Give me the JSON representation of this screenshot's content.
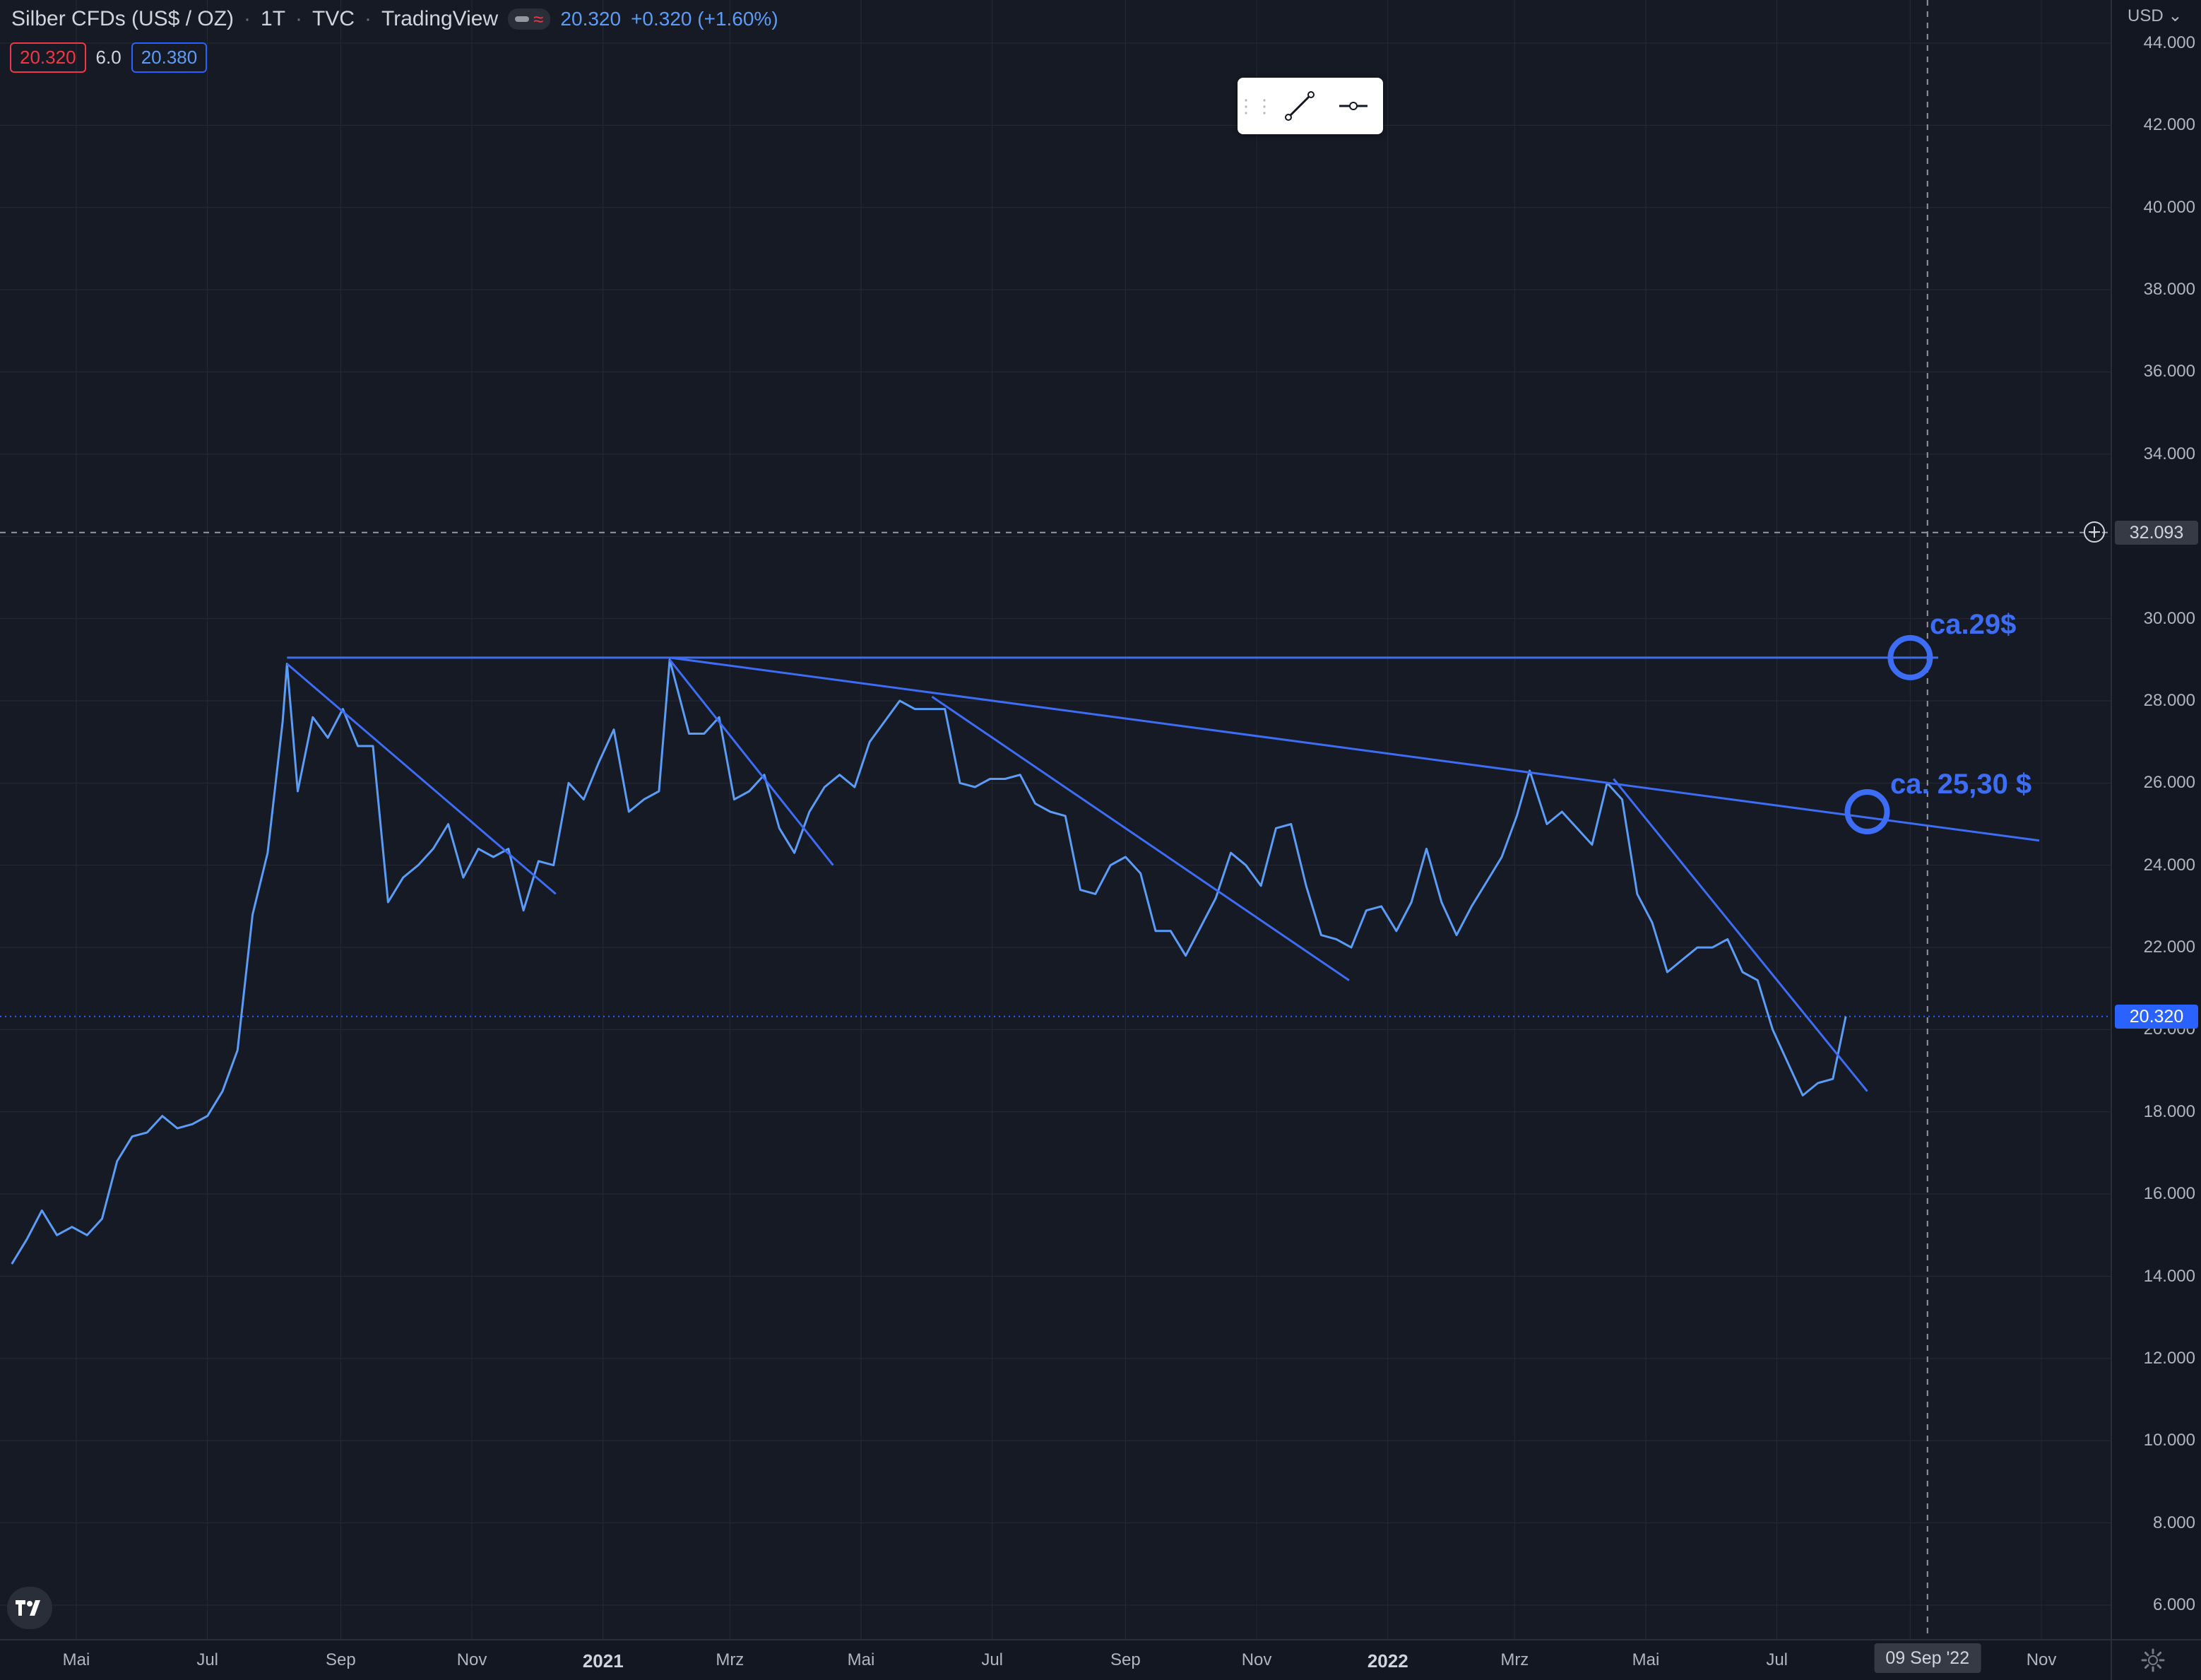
{
  "header": {
    "symbol_title": "Silber CFDs (US$ / OZ)",
    "interval": "1T",
    "exchange": "TVC",
    "source": "TradingView",
    "last_price": "20.320",
    "change": "+0.320 (+1.60%)"
  },
  "ohlc": {
    "left_value": "20.320",
    "middle_value": "6.0",
    "right_value": "20.380"
  },
  "price_scale": {
    "currency": "USD",
    "labels": [
      "44.000",
      "42.000",
      "40.000",
      "38.000",
      "36.000",
      "34.000",
      "30.000",
      "28.000",
      "26.000",
      "24.000",
      "22.000",
      "20.000",
      "18.000",
      "16.000",
      "14.000",
      "12.000",
      "10.000",
      "8.000",
      "6.000"
    ],
    "crosshair_price": "32.093",
    "current_price_tag": "20.320"
  },
  "time_scale": {
    "labels": [
      {
        "text": "Mai",
        "bold": false
      },
      {
        "text": "Jul",
        "bold": false
      },
      {
        "text": "Sep",
        "bold": false
      },
      {
        "text": "Nov",
        "bold": false
      },
      {
        "text": "2021",
        "bold": true
      },
      {
        "text": "Mrz",
        "bold": false
      },
      {
        "text": "Mai",
        "bold": false
      },
      {
        "text": "Jul",
        "bold": false
      },
      {
        "text": "Sep",
        "bold": false
      },
      {
        "text": "Nov",
        "bold": false
      },
      {
        "text": "2022",
        "bold": true
      },
      {
        "text": "Mrz",
        "bold": false
      },
      {
        "text": "Mai",
        "bold": false
      },
      {
        "text": "Jul",
        "bold": false
      },
      {
        "text": "Nov",
        "bold": false
      }
    ],
    "crosshair_date": "09 Sep '22"
  },
  "annotations": {
    "target_1": "ca.29$",
    "target_2": "ca. 25,30 $"
  },
  "colors": {
    "background": "#161a25",
    "line": "#5b9cf6",
    "trendline": "#3d6df5",
    "up": "#5b9cf6",
    "down": "#f23645"
  },
  "chart_data": {
    "type": "line",
    "title": "Silber CFDs (US$ / OZ)",
    "ylim": [
      5,
      45
    ],
    "series": [
      {
        "name": "Silber CFDs (US$ / OZ)",
        "points": [
          [
            "2020-04-01",
            14.3
          ],
          [
            "2020-04-08",
            14.9
          ],
          [
            "2020-04-15",
            15.6
          ],
          [
            "2020-04-22",
            15.0
          ],
          [
            "2020-04-29",
            15.2
          ],
          [
            "2020-05-06",
            15.0
          ],
          [
            "2020-05-13",
            15.4
          ],
          [
            "2020-05-20",
            16.8
          ],
          [
            "2020-05-27",
            17.4
          ],
          [
            "2020-06-03",
            17.5
          ],
          [
            "2020-06-10",
            17.9
          ],
          [
            "2020-06-17",
            17.6
          ],
          [
            "2020-06-24",
            17.7
          ],
          [
            "2020-07-01",
            17.9
          ],
          [
            "2020-07-08",
            18.5
          ],
          [
            "2020-07-15",
            19.5
          ],
          [
            "2020-07-22",
            22.8
          ],
          [
            "2020-07-29",
            24.3
          ],
          [
            "2020-08-05",
            27.5
          ],
          [
            "2020-08-07",
            28.9
          ],
          [
            "2020-08-12",
            25.8
          ],
          [
            "2020-08-19",
            27.6
          ],
          [
            "2020-08-26",
            27.1
          ],
          [
            "2020-09-02",
            27.8
          ],
          [
            "2020-09-09",
            26.9
          ],
          [
            "2020-09-16",
            26.9
          ],
          [
            "2020-09-23",
            23.1
          ],
          [
            "2020-09-30",
            23.7
          ],
          [
            "2020-10-07",
            24.0
          ],
          [
            "2020-10-14",
            24.4
          ],
          [
            "2020-10-21",
            25.0
          ],
          [
            "2020-10-28",
            23.7
          ],
          [
            "2020-11-04",
            24.4
          ],
          [
            "2020-11-11",
            24.2
          ],
          [
            "2020-11-18",
            24.4
          ],
          [
            "2020-11-25",
            22.9
          ],
          [
            "2020-12-02",
            24.1
          ],
          [
            "2020-12-09",
            24.0
          ],
          [
            "2020-12-16",
            26.0
          ],
          [
            "2020-12-23",
            25.6
          ],
          [
            "2020-12-30",
            26.5
          ],
          [
            "2021-01-06",
            27.3
          ],
          [
            "2021-01-13",
            25.3
          ],
          [
            "2021-01-20",
            25.6
          ],
          [
            "2021-01-27",
            25.8
          ],
          [
            "2021-02-01",
            29.0
          ],
          [
            "2021-02-10",
            27.2
          ],
          [
            "2021-02-17",
            27.2
          ],
          [
            "2021-02-24",
            27.6
          ],
          [
            "2021-03-03",
            25.6
          ],
          [
            "2021-03-10",
            25.8
          ],
          [
            "2021-03-17",
            26.2
          ],
          [
            "2021-03-24",
            24.9
          ],
          [
            "2021-03-31",
            24.3
          ],
          [
            "2021-04-07",
            25.3
          ],
          [
            "2021-04-14",
            25.9
          ],
          [
            "2021-04-21",
            26.2
          ],
          [
            "2021-04-28",
            25.9
          ],
          [
            "2021-05-05",
            27.0
          ],
          [
            "2021-05-12",
            27.5
          ],
          [
            "2021-05-19",
            28.0
          ],
          [
            "2021-05-26",
            27.8
          ],
          [
            "2021-06-02",
            27.8
          ],
          [
            "2021-06-09",
            27.8
          ],
          [
            "2021-06-16",
            26.0
          ],
          [
            "2021-06-23",
            25.9
          ],
          [
            "2021-06-30",
            26.1
          ],
          [
            "2021-07-07",
            26.1
          ],
          [
            "2021-07-14",
            26.2
          ],
          [
            "2021-07-21",
            25.5
          ],
          [
            "2021-07-28",
            25.3
          ],
          [
            "2021-08-04",
            25.2
          ],
          [
            "2021-08-11",
            23.4
          ],
          [
            "2021-08-18",
            23.3
          ],
          [
            "2021-08-25",
            24.0
          ],
          [
            "2021-09-01",
            24.2
          ],
          [
            "2021-09-08",
            23.8
          ],
          [
            "2021-09-15",
            22.4
          ],
          [
            "2021-09-22",
            22.4
          ],
          [
            "2021-09-29",
            21.8
          ],
          [
            "2021-10-06",
            22.5
          ],
          [
            "2021-10-13",
            23.2
          ],
          [
            "2021-10-20",
            24.3
          ],
          [
            "2021-10-27",
            24.0
          ],
          [
            "2021-11-03",
            23.5
          ],
          [
            "2021-11-10",
            24.9
          ],
          [
            "2021-11-17",
            25.0
          ],
          [
            "2021-11-24",
            23.5
          ],
          [
            "2021-12-01",
            22.3
          ],
          [
            "2021-12-08",
            22.2
          ],
          [
            "2021-12-15",
            22.0
          ],
          [
            "2021-12-22",
            22.9
          ],
          [
            "2021-12-29",
            23.0
          ],
          [
            "2022-01-05",
            22.4
          ],
          [
            "2022-01-12",
            23.1
          ],
          [
            "2022-01-19",
            24.4
          ],
          [
            "2022-01-26",
            23.1
          ],
          [
            "2022-02-02",
            22.3
          ],
          [
            "2022-02-09",
            23.0
          ],
          [
            "2022-02-16",
            23.6
          ],
          [
            "2022-02-23",
            24.2
          ],
          [
            "2022-03-02",
            25.2
          ],
          [
            "2022-03-08",
            26.3
          ],
          [
            "2022-03-16",
            25.0
          ],
          [
            "2022-03-23",
            25.3
          ],
          [
            "2022-03-30",
            24.9
          ],
          [
            "2022-04-06",
            24.5
          ],
          [
            "2022-04-13",
            26.0
          ],
          [
            "2022-04-20",
            25.6
          ],
          [
            "2022-04-27",
            23.3
          ],
          [
            "2022-05-04",
            22.6
          ],
          [
            "2022-05-11",
            21.4
          ],
          [
            "2022-05-18",
            21.7
          ],
          [
            "2022-05-25",
            22.0
          ],
          [
            "2022-06-01",
            22.0
          ],
          [
            "2022-06-08",
            22.2
          ],
          [
            "2022-06-15",
            21.4
          ],
          [
            "2022-06-22",
            21.2
          ],
          [
            "2022-06-29",
            20.0
          ],
          [
            "2022-07-06",
            19.2
          ],
          [
            "2022-07-13",
            18.4
          ],
          [
            "2022-07-20",
            18.7
          ],
          [
            "2022-07-27",
            18.8
          ],
          [
            "2022-08-02",
            20.32
          ]
        ]
      }
    ],
    "trendlines": [
      {
        "from": [
          "2020-08-07",
          29.05
        ],
        "to": [
          "2022-09-14",
          29.05
        ]
      },
      {
        "from": [
          "2021-02-01",
          29.05
        ],
        "to": [
          "2022-10-31",
          24.6
        ]
      },
      {
        "from": [
          "2020-08-07",
          28.9
        ],
        "to": [
          "2020-12-10",
          23.3
        ]
      },
      {
        "from": [
          "2021-02-01",
          29.0
        ],
        "to": [
          "2021-04-18",
          24.0
        ]
      },
      {
        "from": [
          "2021-06-03",
          28.1
        ],
        "to": [
          "2021-12-14",
          21.2
        ]
      },
      {
        "from": [
          "2022-04-16",
          26.1
        ],
        "to": [
          "2022-08-12",
          18.5
        ]
      }
    ],
    "markers": [
      {
        "date": "2022-09-01",
        "value": 29.05,
        "label": "ca.29$"
      },
      {
        "date": "2022-08-12",
        "value": 25.3,
        "label": "ca. 25,30 $"
      }
    ],
    "crosshair": {
      "date": "2022-09-09",
      "value": 32.093
    }
  }
}
